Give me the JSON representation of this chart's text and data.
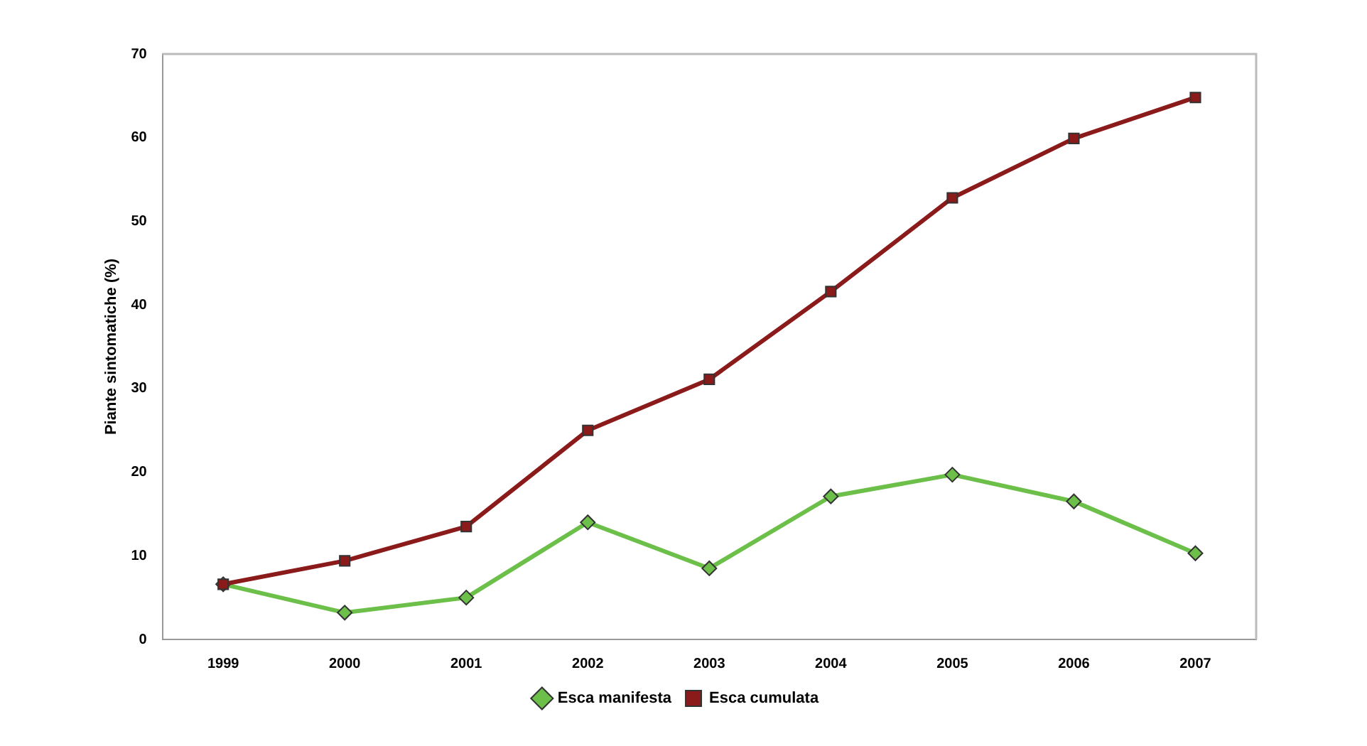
{
  "chart_data": {
    "type": "line",
    "ylabel": "Piante sintomatiche (%)",
    "categories": [
      "1999",
      "2000",
      "2001",
      "2002",
      "2003",
      "2004",
      "2005",
      "2006",
      "2007"
    ],
    "series": [
      {
        "name": "Esca manifesta",
        "color": "#6cc04a",
        "marker": "diamond",
        "values": [
          6.6,
          3.2,
          5.0,
          14.0,
          8.5,
          17.1,
          19.7,
          16.5,
          10.3
        ]
      },
      {
        "name": "Esca cumulata",
        "color": "#8b1a1a",
        "marker": "square",
        "values": [
          6.6,
          9.4,
          13.5,
          25.0,
          31.1,
          41.6,
          52.8,
          59.9,
          64.8
        ]
      }
    ],
    "ylim": [
      0,
      70
    ],
    "yticks": [
      0,
      10,
      20,
      30,
      40,
      50,
      60,
      70
    ],
    "grid": false,
    "legend": "bottom",
    "line_style": "solid"
  }
}
